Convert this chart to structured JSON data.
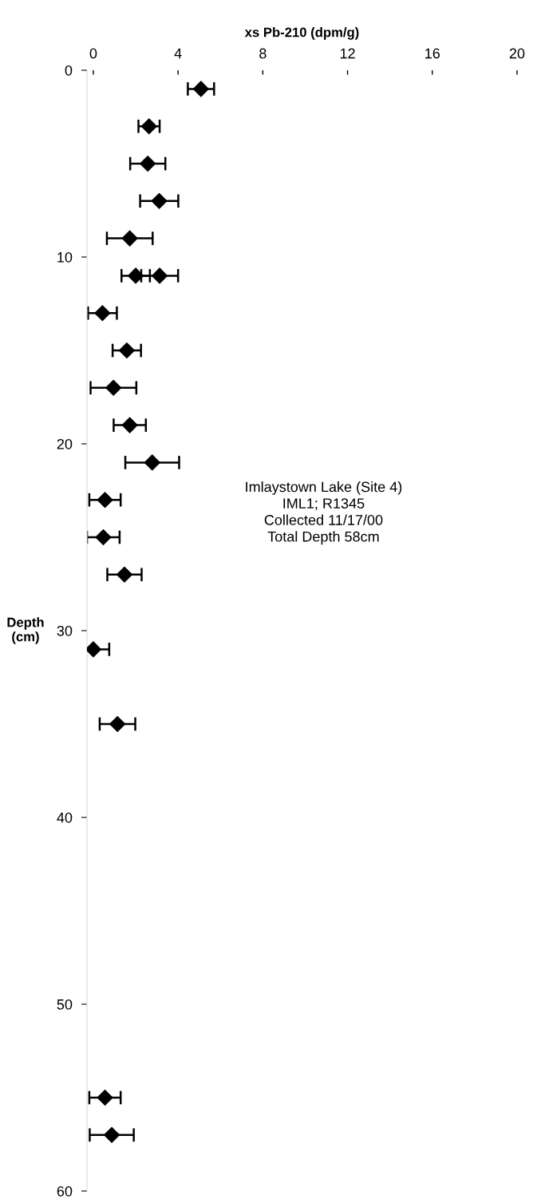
{
  "chart_data": {
    "type": "scatter",
    "xlabel": "xs Pb-210 (dpm/g)",
    "ylabel": "Depth\n(cm)",
    "x": [
      5.08,
      2.63,
      2.57,
      3.11,
      1.72,
      2.0,
      3.13,
      0.43,
      1.58,
      0.95,
      1.72,
      2.78,
      0.55,
      0.47,
      1.47,
      0.0,
      1.14,
      0.55,
      0.87
    ],
    "values": [
      1,
      3,
      5,
      7,
      9,
      11,
      11,
      13,
      15,
      17,
      19,
      21,
      23,
      25,
      27,
      31,
      35,
      55,
      57
    ],
    "xerrors": [
      0.62,
      0.5,
      0.83,
      0.9,
      1.08,
      0.67,
      0.87,
      0.68,
      0.67,
      1.08,
      0.76,
      1.27,
      0.74,
      0.77,
      0.81,
      0.75,
      0.84,
      0.74,
      1.04
    ],
    "color": "#000000",
    "marker": "diamond",
    "xlim": [
      -0.3,
      20
    ],
    "xticks": [
      0,
      4,
      8,
      12,
      16,
      20
    ],
    "ylim": [
      60,
      0
    ],
    "yticks": [
      0,
      10,
      20,
      30,
      40,
      50,
      60
    ],
    "grid": false,
    "legend": false,
    "annotations": [
      "Imlaystown Lake (Site 4)\nIML1; R1345\nCollected 11/17/00\nTotal Depth 58cm"
    ]
  }
}
